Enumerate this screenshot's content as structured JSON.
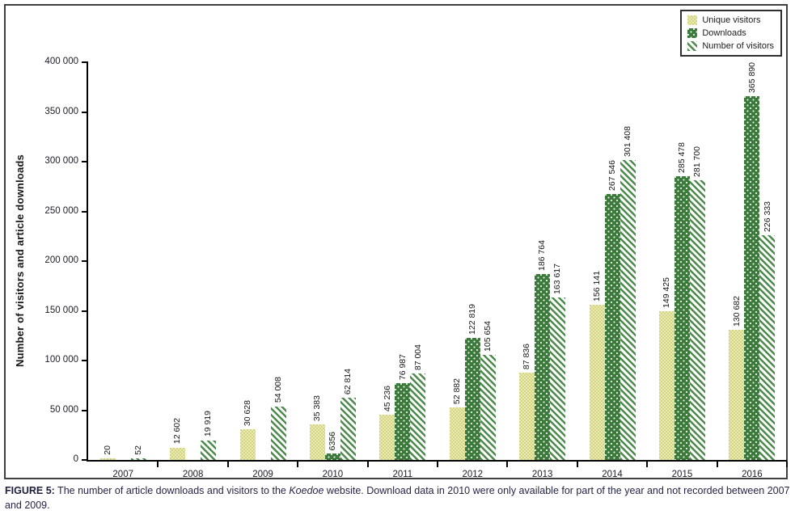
{
  "figure": {
    "caption_label": "FIGURE 5:",
    "caption_before_italic": " The number of article downloads and visitors to the ",
    "caption_italic": "Koedoe",
    "caption_after_italic": " website. Download data in 2010 were only available for part of the year and not recorded between 2007 and 2009."
  },
  "colors": {
    "unique_visitors_fill": "#dfe09b",
    "downloads_fill": "#3b7a3b",
    "number_of_visitors_hatch": "#4d8b4d",
    "axis": "#000000",
    "caption_text": "#252547"
  },
  "chart_data": {
    "type": "bar",
    "title": "",
    "xlabel": "",
    "ylabel": "Number of visitors and article downloads",
    "ylim": [
      0,
      400000
    ],
    "grid": false,
    "legend_position": "top-right",
    "ytick_labels": [
      "0",
      "50 000",
      "100 000",
      "150 000",
      "200 000",
      "250 000",
      "300 000",
      "350 000",
      "400 000"
    ],
    "categories": [
      "2007",
      "2008",
      "2009",
      "2010",
      "2011",
      "2012",
      "2013",
      "2014",
      "2015",
      "2016"
    ],
    "series": [
      {
        "name": "Unique visitors",
        "pattern": "checker",
        "color": "#dfe09b",
        "values": [
          20,
          12602,
          30628,
          35383,
          45236,
          52882,
          87836,
          156141,
          149425,
          130682
        ],
        "labels": [
          "20",
          "12 602",
          "30 628",
          "35 383",
          "45 236",
          "52 882",
          "87 836",
          "156 141",
          "149 425",
          "130 682"
        ]
      },
      {
        "name": "Downloads",
        "pattern": "dots",
        "color": "#3b7a3b",
        "values": [
          null,
          null,
          null,
          6356,
          76987,
          122819,
          186764,
          267546,
          285478,
          365890
        ],
        "labels": [
          "",
          "",
          "",
          "6356",
          "76 987",
          "122 819",
          "186 764",
          "267 546",
          "285 478",
          "365 890"
        ]
      },
      {
        "name": "Number of visitors",
        "pattern": "diagonal",
        "color": "#4d8b4d",
        "values": [
          52,
          19919,
          54008,
          62814,
          87004,
          105654,
          163617,
          301408,
          281700,
          226333
        ],
        "labels": [
          "52",
          "19 919",
          "54 008",
          "62 814",
          "87 004",
          "105 654",
          "163 617",
          "301 408",
          "281 700",
          "226 333"
        ]
      }
    ]
  }
}
